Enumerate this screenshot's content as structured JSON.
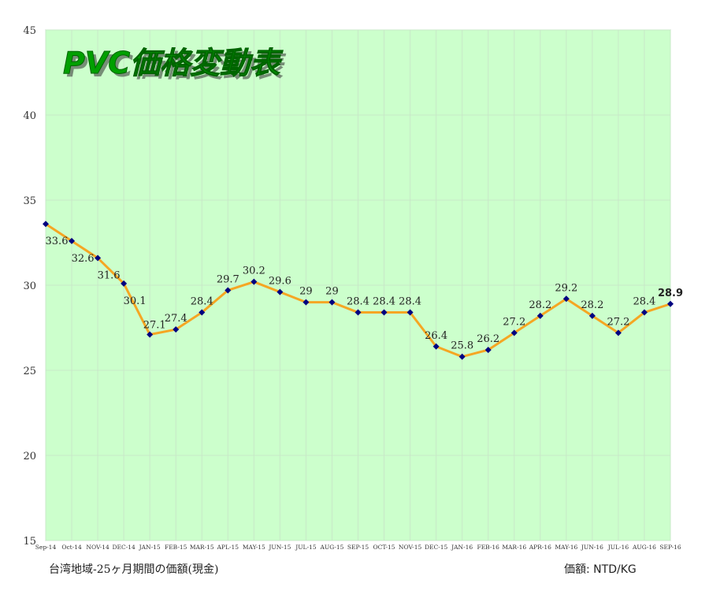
{
  "chart_data": {
    "type": "line",
    "title": "PVC価格変動表",
    "categories": [
      "Sep-14",
      "Oct-14",
      "NOV-14",
      "DEC-14",
      "JAN-15",
      "FEB-15",
      "MAR-15",
      "APL-15",
      "MAY-15",
      "JUN-15",
      "JUL-15",
      "AUG-15",
      "SEP-15",
      "OCT-15",
      "NOV-15",
      "DEC-15",
      "JAN-16",
      "FEB-16",
      "MAR-16",
      "APR-16",
      "MAY-16",
      "JUN-16",
      "JUL-16",
      "AUG-16",
      "SEP-16"
    ],
    "series": [
      {
        "values": [
          33.6,
          32.6,
          31.6,
          30.1,
          27.1,
          27.4,
          28.4,
          29.7,
          30.2,
          29.6,
          29,
          29,
          28.4,
          28.4,
          28.4,
          26.4,
          25.8,
          26.2,
          27.2,
          28.2,
          29.2,
          28.2,
          27.2,
          28.4,
          28.9
        ],
        "data_labels": [
          "33.6",
          "32.6",
          "31.6",
          "30.1",
          "27.1",
          "27.4",
          "28.4",
          "29.7",
          "30.2",
          "29.6",
          "29",
          "29",
          "28.4",
          "28.4",
          "28.4",
          "26.4",
          "25.8",
          "26.2",
          "27.2",
          "28.2",
          "29.2",
          "28.2",
          "27.2",
          "28.4",
          "28.9"
        ]
      }
    ],
    "ylim": [
      15,
      45
    ],
    "yticks": [
      "15",
      "20",
      "25",
      "30",
      "35",
      "40",
      "45"
    ],
    "grid": true,
    "legend": "none",
    "colors": {
      "plot_bg": "#ccffcc",
      "line": "#f5a623",
      "marker": "#000080",
      "grid": "#c8e8c8",
      "title_fill": "#00a000",
      "title_shadow": "#333333"
    }
  },
  "footer": {
    "note": "台湾地域-25ヶ月期間の価額(現金)",
    "unit": "価額: NTD/KG"
  }
}
